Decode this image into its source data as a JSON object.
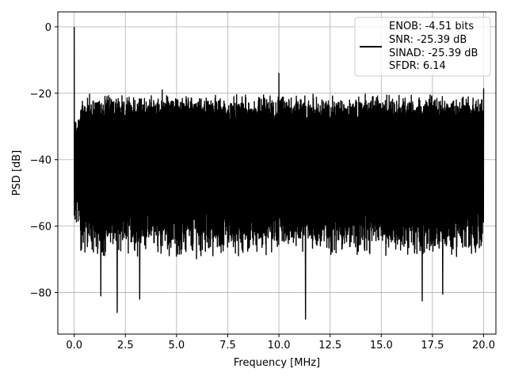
{
  "chart_data": {
    "type": "line",
    "xlabel": "Frequency [MHz]",
    "ylabel": "PSD [dB]",
    "xlim": [
      -0.8,
      20.6
    ],
    "ylim": [
      -92.5,
      4.5
    ],
    "xticks": [
      0.0,
      2.5,
      5.0,
      7.5,
      10.0,
      12.5,
      15.0,
      17.5,
      20.0
    ],
    "xtick_labels": [
      "0.0",
      "2.5",
      "5.0",
      "7.5",
      "10.0",
      "12.5",
      "15.0",
      "17.5",
      "20.0"
    ],
    "yticks": [
      0,
      -20,
      -40,
      -60,
      -80
    ],
    "ytick_labels": [
      "0",
      "−20",
      "−40",
      "−60",
      "−80"
    ],
    "grid": true,
    "legend_position": "top-right",
    "series": [
      {
        "name": "ENOB: -4.51 bits\nSNR: -25.39 dB\nSINAD: -25.39 dB\nSFDR: 6.14",
        "color": "#000000",
        "legend_lines": [
          "ENOB: -4.51 bits",
          "SNR: -25.39 dB",
          "SINAD: -25.39 dB",
          "SFDR: 6.14"
        ],
        "frequency_range": [
          0.0,
          20.0
        ],
        "noise_floor_top": -23,
        "noise_floor_bottom": -65,
        "peaks": [
          {
            "x": 0.0,
            "y": 0.0
          },
          {
            "x": 1.6,
            "y": -21.0
          },
          {
            "x": 3.2,
            "y": -22.0
          },
          {
            "x": 4.3,
            "y": -19.0
          },
          {
            "x": 10.0,
            "y": -14.0
          },
          {
            "x": 20.0,
            "y": -18.5
          }
        ],
        "troughs": [
          {
            "x": 1.3,
            "y": -81.0
          },
          {
            "x": 2.1,
            "y": -86.0
          },
          {
            "x": 3.2,
            "y": -82.0
          },
          {
            "x": 11.3,
            "y": -88.0
          },
          {
            "x": 17.0,
            "y": -82.5
          },
          {
            "x": 18.0,
            "y": -80.5
          }
        ]
      }
    ]
  }
}
